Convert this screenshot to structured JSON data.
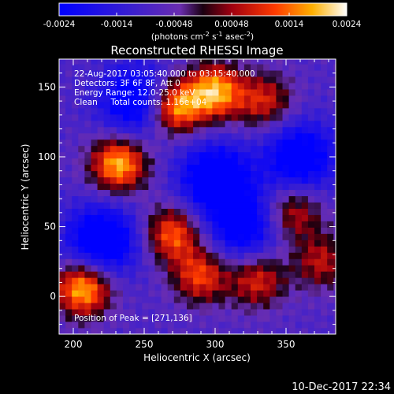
{
  "chart_data": {
    "type": "heatmap",
    "title": "Reconstructed RHESSI Image",
    "xlabel": "Heliocentric X (arcsec)",
    "ylabel": "Heliocentric Y (arcsec)",
    "xlim": [
      190,
      385
    ],
    "ylim": [
      -27,
      170
    ],
    "xticks": [
      200,
      250,
      300,
      350
    ],
    "yticks": [
      0,
      50,
      100,
      150
    ],
    "colorbar": {
      "ticks": [
        "-0.0024",
        "-0.0014",
        "-0.00048",
        "0.00048",
        "0.0014",
        "0.0024"
      ],
      "range": [
        -0.0024,
        0.0024
      ],
      "label_main": "(photons cm",
      "label_exp1": "-2",
      "label_mid1": " s",
      "label_exp2": "-1",
      "label_mid2": " asec",
      "label_exp3": "-2",
      "label_end": ")"
    },
    "annotations": [
      "22-Aug-2017 03:05:40.000 to 03:15:40.000",
      "Detectors: 3F 6F 8F, Att 0",
      "Energy Range: 12.0-25.0 keV",
      "Clean     Total counts: 1.16e+04"
    ],
    "peak_label": "Position of Peak = [271,136]",
    "peak": [
      271,
      136
    ],
    "hot_regions": [
      {
        "x": 207,
        "y": 6,
        "peak": 0.0024
      },
      {
        "x": 232,
        "y": 95,
        "peak": 0.0023
      },
      {
        "x": 271,
        "y": 136,
        "peak": 0.0024
      },
      {
        "x": 300,
        "y": 147,
        "peak": 0.0022
      },
      {
        "x": 270,
        "y": 45,
        "peak": 0.0017
      },
      {
        "x": 290,
        "y": 15,
        "peak": 0.0015
      },
      {
        "x": 330,
        "y": 12,
        "peak": 0.0013
      },
      {
        "x": 355,
        "y": 60,
        "peak": 0.0012
      },
      {
        "x": 335,
        "y": 140,
        "peak": 0.0012
      },
      {
        "x": 375,
        "y": 25,
        "peak": 0.001
      }
    ],
    "cool_regions": [
      {
        "x": 220,
        "y": 40,
        "peak": -0.0022
      },
      {
        "x": 245,
        "y": 140,
        "peak": -0.002
      },
      {
        "x": 300,
        "y": 85,
        "peak": -0.0021
      },
      {
        "x": 360,
        "y": 100,
        "peak": -0.0019
      },
      {
        "x": 320,
        "y": 50,
        "peak": -0.0017
      }
    ]
  },
  "footer": {
    "timestamp": "10-Dec-2017 22:34"
  }
}
